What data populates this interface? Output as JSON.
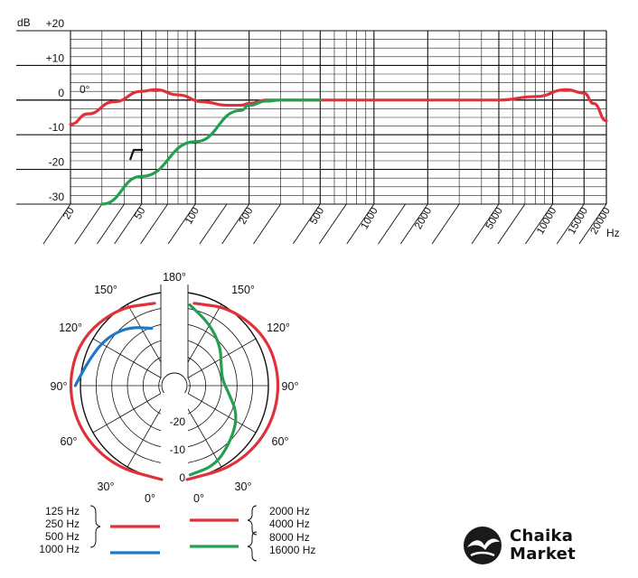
{
  "chart_data": [
    {
      "type": "line",
      "title": "",
      "ylabel": "dB",
      "xlabel": "Hz",
      "x_scale": "log",
      "xlim": [
        20,
        20000
      ],
      "ylim": [
        -30,
        20
      ],
      "grid": true,
      "y_ticks": [
        "+20",
        "+10",
        "0",
        "-10",
        "-20",
        "-30"
      ],
      "x_ticks": [
        "20",
        "50",
        "100",
        "200",
        "500",
        "1000",
        "2000",
        "5000",
        "10000",
        "15000",
        "20000"
      ],
      "annotation_zero": "0°",
      "annotation_filter": "highpass-filter-icon",
      "series": [
        {
          "color": "#e0303a",
          "x": [
            20,
            25,
            35,
            50,
            60,
            80,
            110,
            150,
            180,
            200,
            250,
            500,
            1000,
            2000,
            5000,
            8000,
            12000,
            15000,
            17000,
            20000
          ],
          "y": [
            -7,
            -4,
            -0.5,
            2.5,
            3,
            1.5,
            -0.5,
            -1.5,
            -1.5,
            -1,
            0,
            0,
            0,
            0,
            0,
            1,
            3,
            2,
            -1,
            -6
          ]
        },
        {
          "color": "#22a050",
          "x": [
            30,
            50,
            100,
            180,
            200,
            250,
            300,
            500
          ],
          "y": [
            -30,
            -22,
            -12,
            -3,
            -1.5,
            -0.3,
            0,
            0
          ]
        }
      ]
    },
    {
      "type": "polar",
      "title": "",
      "angle_labels": [
        "180°",
        "150°",
        "120°",
        "90°",
        "60°",
        "30°",
        "0°"
      ],
      "level_labels": [
        "-20",
        "-10",
        "0"
      ],
      "series": [
        {
          "color": "#e0303a",
          "name_lines": [
            "125 Hz",
            "250 Hz",
            "500 Hz"
          ],
          "side": "left",
          "radius_by_angle": [
            [
              0,
              1.0
            ],
            [
              30,
              1.0
            ],
            [
              60,
              1.0
            ],
            [
              90,
              1.0
            ],
            [
              120,
              1.0
            ],
            [
              150,
              0.95
            ],
            [
              175,
              0.88
            ]
          ]
        },
        {
          "color": "#1e78c8",
          "name_lines": [
            "1000 Hz"
          ],
          "side": "left",
          "radius_by_angle": [
            [
              90,
              0.92
            ],
            [
              110,
              0.82
            ],
            [
              130,
              0.78
            ],
            [
              150,
              0.72
            ],
            [
              170,
              0.62
            ]
          ]
        },
        {
          "color": "#e0303a",
          "name_lines": [
            "2000 Hz",
            "4000 Hz"
          ],
          "side": "right",
          "radius_by_angle": [
            [
              0,
              1.0
            ],
            [
              30,
              1.0
            ],
            [
              60,
              1.0
            ],
            [
              90,
              1.0
            ],
            [
              120,
              1.0
            ],
            [
              150,
              0.95
            ],
            [
              175,
              0.88
            ]
          ]
        },
        {
          "color": "#22a050",
          "name_lines": [
            "8000 Hz",
            "16000 Hz"
          ],
          "side": "right",
          "radius_by_angle": [
            [
              2,
              0.95
            ],
            [
              20,
              0.9
            ],
            [
              40,
              0.74
            ],
            [
              60,
              0.62
            ],
            [
              80,
              0.45
            ],
            [
              100,
              0.38
            ],
            [
              120,
              0.42
            ],
            [
              140,
              0.55
            ],
            [
              160,
              0.7
            ],
            [
              178,
              0.86
            ]
          ]
        }
      ]
    }
  ],
  "brand": {
    "line1": "Chaika",
    "line2": "Market",
    "logo_icon": "seagull-logo-icon"
  }
}
